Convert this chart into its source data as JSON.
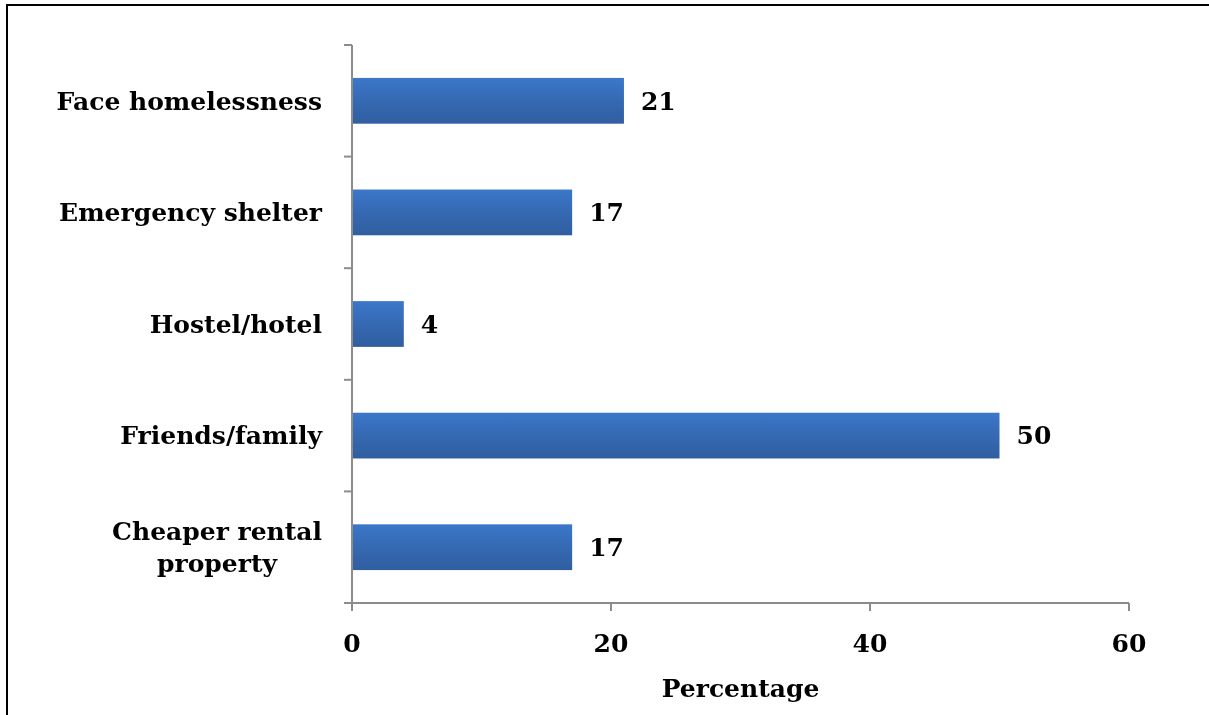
{
  "chart_data": {
    "type": "bar",
    "orientation": "horizontal",
    "categories": [
      "Face homelessness",
      "Emergency shelter",
      "Hostel/hotel",
      "Friends/family",
      "Cheaper rental property"
    ],
    "values": [
      21,
      17,
      4,
      50,
      17
    ],
    "color": "#3569b2",
    "xlabel": "Percentage",
    "xlim": [
      0,
      60
    ],
    "xticks": [
      0,
      20,
      40,
      60
    ],
    "data_labels": true
  }
}
